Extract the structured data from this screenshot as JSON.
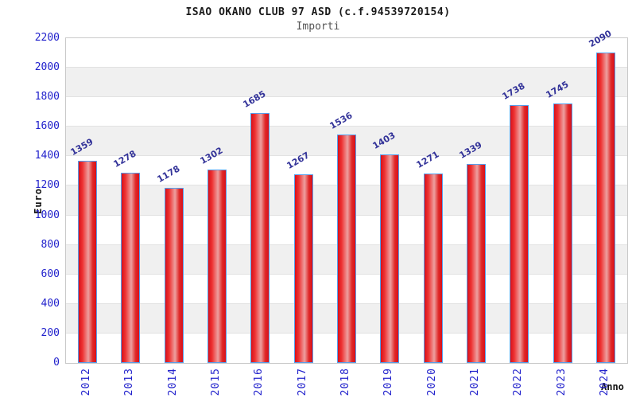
{
  "header": {
    "title": "ISAO OKANO CLUB 97 ASD (c.f.94539720154)",
    "subtitle": "Importi"
  },
  "chart_data": {
    "type": "bar",
    "title": "ISAO OKANO CLUB 97 ASD (c.f.94539720154)",
    "subtitle": "Importi",
    "categories": [
      "2012",
      "2013",
      "2014",
      "2015",
      "2016",
      "2017",
      "2018",
      "2019",
      "2020",
      "2021",
      "2022",
      "2023",
      "2024"
    ],
    "values": [
      1359,
      1278,
      1178,
      1302,
      1685,
      1267,
      1536,
      1403,
      1271,
      1339,
      1738,
      1745,
      2090
    ],
    "xlabel": "Anno",
    "ylabel": "Euro",
    "ylim": [
      0,
      2200
    ],
    "yticks": [
      0,
      200,
      400,
      600,
      800,
      1000,
      1200,
      1400,
      1600,
      1800,
      2000,
      2200
    ],
    "grid": true,
    "legend": false,
    "band_fill": "alternating horizontal bands per 200 units",
    "colors": {
      "bar_fill_edge": "#d8101a",
      "bar_fill_mid": "#eda0a0",
      "bar_border": "#55a0ee",
      "tick_label": "#2222cc",
      "value_label": "#333399",
      "band_gray": "#f0f0f0",
      "grid_line": "#e2e2e2",
      "plot_border": "#c9c9c9",
      "title": "#1a1a1a",
      "subtitle": "#555555"
    }
  }
}
